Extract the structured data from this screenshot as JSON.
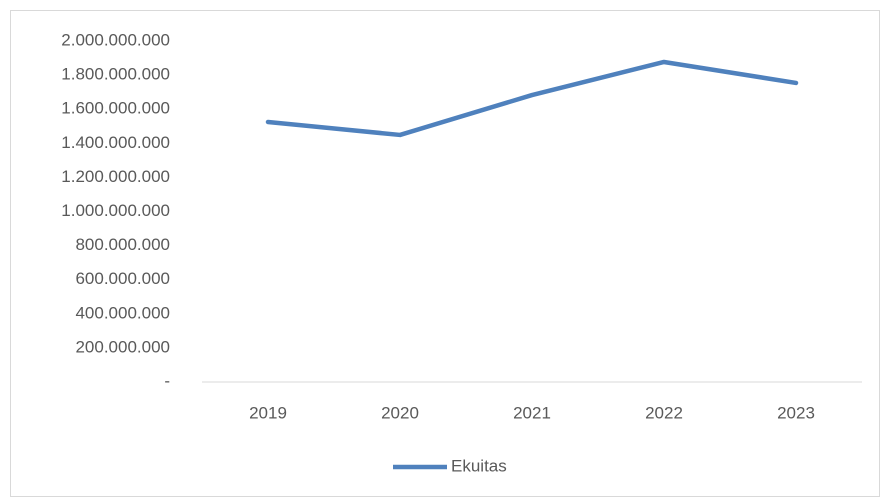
{
  "chart_data": {
    "type": "line",
    "categories": [
      "2019",
      "2020",
      "2021",
      "2022",
      "2023"
    ],
    "series": [
      {
        "name": "Ekuitas",
        "color": "#4f81bd",
        "values": [
          1525000000,
          1449000000,
          1683000000,
          1877000000,
          1754000000
        ]
      }
    ],
    "ylim": [
      0,
      2000000000
    ],
    "yticks": [
      {
        "value": 0,
        "label": "-"
      },
      {
        "value": 200000000,
        "label": "200.000.000"
      },
      {
        "value": 400000000,
        "label": "400.000.000"
      },
      {
        "value": 600000000,
        "label": "600.000.000"
      },
      {
        "value": 800000000,
        "label": "800.000.000"
      },
      {
        "value": 1000000000,
        "label": "1.000.000.000"
      },
      {
        "value": 1200000000,
        "label": "1.200.000.000"
      },
      {
        "value": 1400000000,
        "label": "1.400.000.000"
      },
      {
        "value": 1600000000,
        "label": "1.600.000.000"
      },
      {
        "value": 1800000000,
        "label": "1.800.000.000"
      },
      {
        "value": 2000000000,
        "label": "2.000.000.000"
      }
    ],
    "grid": false,
    "legend": "bottom"
  }
}
